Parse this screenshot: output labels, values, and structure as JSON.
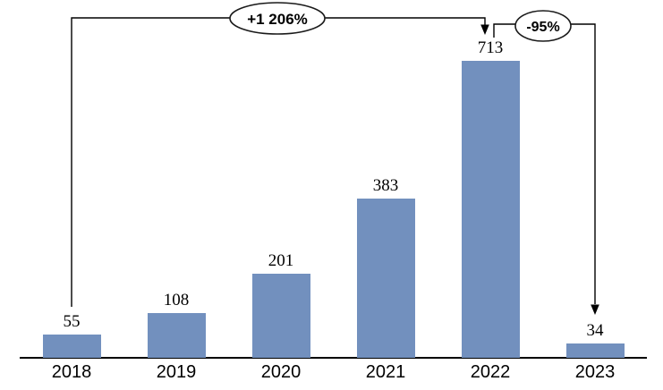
{
  "chart_data": {
    "type": "bar",
    "title": "",
    "xlabel": "",
    "ylabel": "",
    "categories": [
      "2018",
      "2019",
      "2020",
      "2021",
      "2022",
      "2023"
    ],
    "values": [
      55,
      108,
      201,
      383,
      713,
      34
    ],
    "data_labels": [
      "55",
      "108",
      "201",
      "383",
      "713",
      "34"
    ],
    "ylim": [
      0,
      760
    ],
    "grid": false,
    "legend": false,
    "bar_color": "#7290BE",
    "annotations": [
      {
        "label": "+1 206%",
        "from_category": "2018",
        "to_category": "2022",
        "shape": "ellipse-callout-with-arrow"
      },
      {
        "label": "-95%",
        "from_category": "2022",
        "to_category": "2023",
        "shape": "ellipse-callout-with-arrow"
      }
    ]
  },
  "annotation_labels": {
    "growth": "+1 206%",
    "decline": "-95%"
  },
  "colors": {
    "bar": "#7290BE",
    "axis": "#000000",
    "text": "#000000",
    "callout_stroke": "#1a1a1a",
    "callout_fill": "#ffffff"
  }
}
